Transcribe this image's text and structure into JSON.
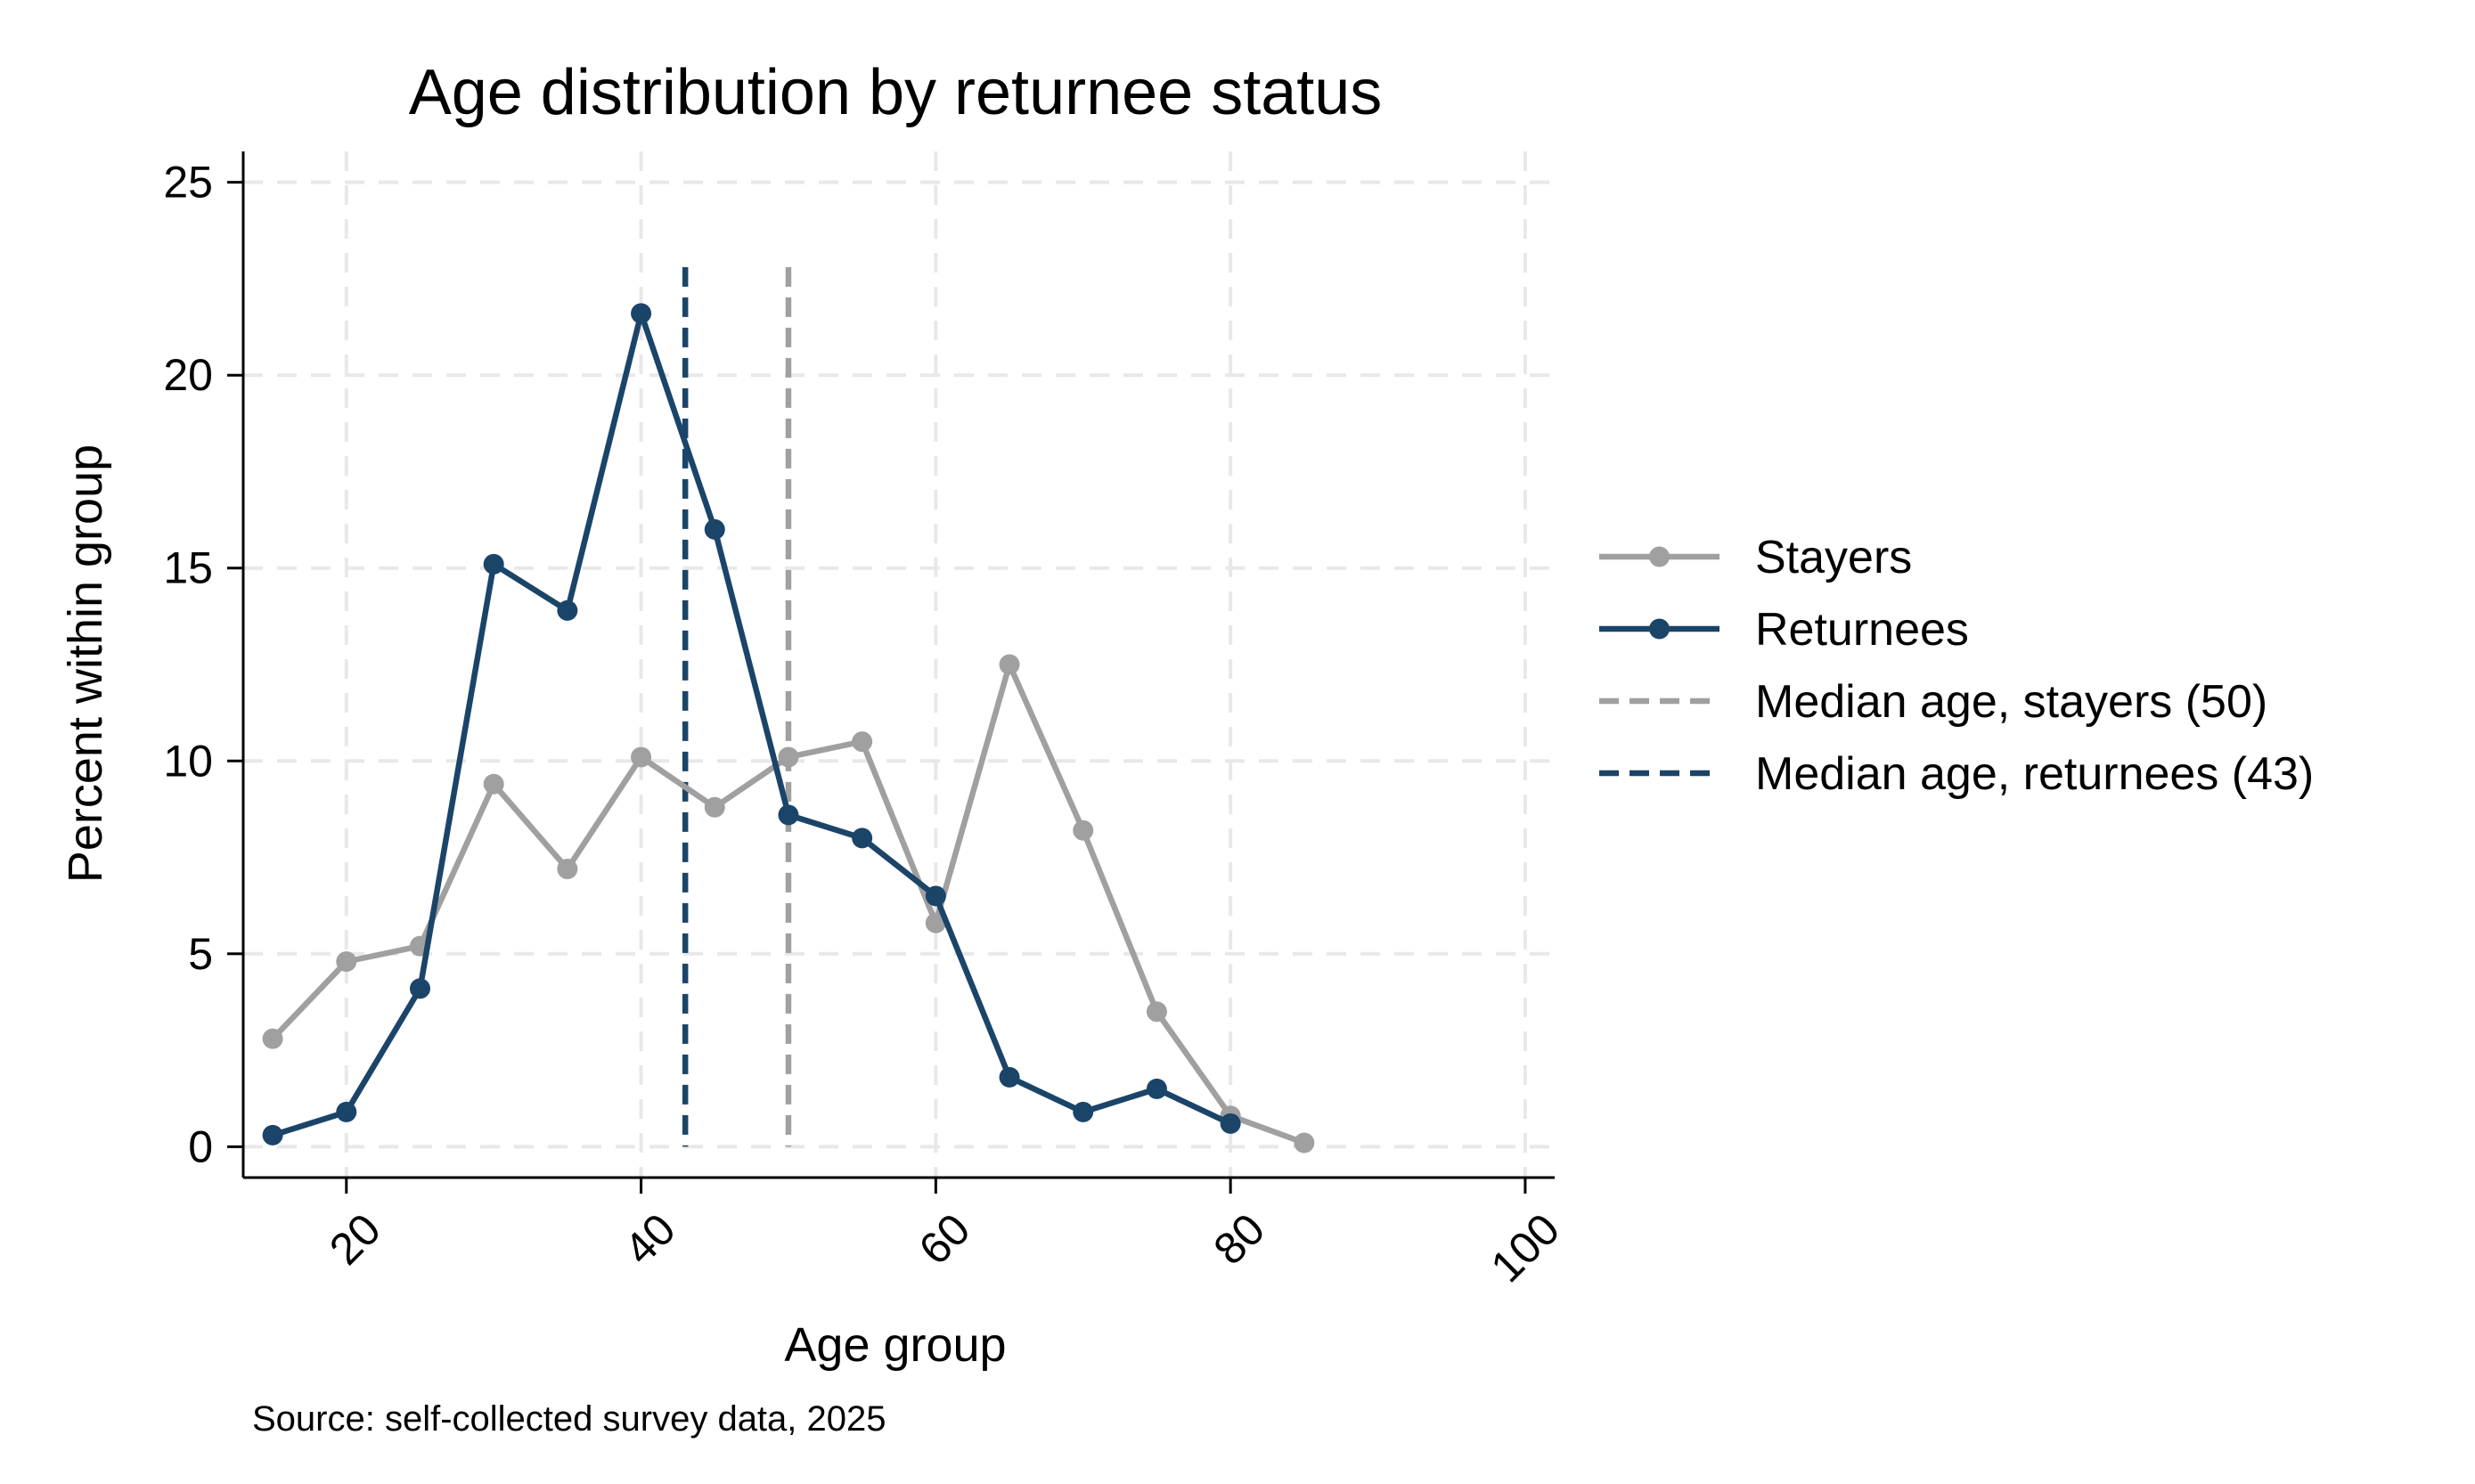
{
  "chart_data": {
    "type": "line",
    "title": "Age distribution by returnee status",
    "xlabel": "Age group",
    "ylabel": "Percent within group",
    "note": "Source: self-collected survey data, 2025",
    "xlim": [
      13,
      102
    ],
    "ylim": [
      -0.8,
      25.8
    ],
    "xticks": [
      20,
      40,
      60,
      80,
      100
    ],
    "yticks": [
      0,
      5,
      10,
      15,
      20,
      25
    ],
    "grid": true,
    "legend_position": "right",
    "series": [
      {
        "name": "Stayers",
        "color": "#a0a0a0",
        "x": [
          15,
          20,
          25,
          30,
          35,
          40,
          45,
          50,
          55,
          60,
          65,
          70,
          75,
          80,
          85
        ],
        "y": [
          2.8,
          4.8,
          5.2,
          9.4,
          7.2,
          10.1,
          8.8,
          10.1,
          10.5,
          5.8,
          12.5,
          8.2,
          3.5,
          0.8,
          0.1
        ]
      },
      {
        "name": "Returnees",
        "color": "#1b4469",
        "x": [
          15,
          20,
          25,
          30,
          35,
          40,
          45,
          50,
          55,
          60,
          65,
          70,
          75,
          80
        ],
        "y": [
          0.3,
          0.9,
          4.1,
          15.1,
          13.9,
          21.6,
          16.0,
          8.6,
          8.0,
          6.5,
          1.8,
          0.9,
          1.5,
          0.6
        ]
      }
    ],
    "reference_lines": [
      {
        "name": "Median age, stayers (50)",
        "x": 50,
        "color": "#a0a0a0"
      },
      {
        "name": "Median age, returnees (43)",
        "x": 43,
        "color": "#1b4469"
      }
    ]
  }
}
